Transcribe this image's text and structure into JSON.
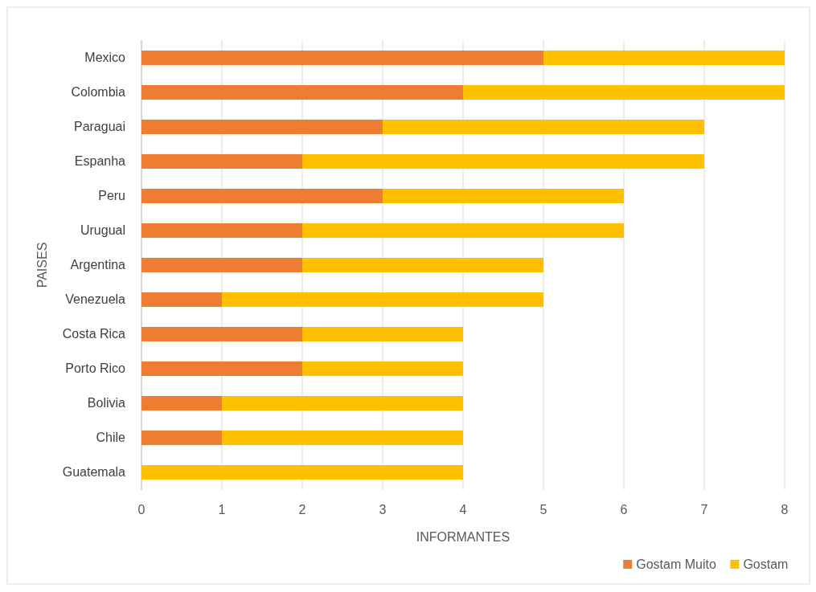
{
  "chart_data": {
    "type": "bar",
    "orientation": "horizontal",
    "stacked": true,
    "xlabel": "INFORMANTES",
    "ylabel": "PAISES",
    "categories": [
      "Mexico",
      "Colombia",
      "Paraguai",
      "Espanha",
      "Peru",
      "Urugual",
      "Argentina",
      "Venezuela",
      "Costa Rica",
      "Porto Rico",
      "Bolivia",
      "Chile",
      "Guatemala"
    ],
    "series": [
      {
        "name": "Gostam Muito",
        "color": "#ed7d31",
        "values": [
          5,
          4,
          3,
          2,
          3,
          2,
          2,
          1,
          2,
          2,
          1,
          1,
          0
        ]
      },
      {
        "name": "Gostam",
        "color": "#ffc000",
        "values": [
          3,
          4,
          4,
          5,
          3,
          4,
          3,
          4,
          2,
          2,
          3,
          3,
          4
        ]
      }
    ],
    "xlim": [
      0,
      8
    ],
    "xticks": [
      0,
      1,
      2,
      3,
      4,
      5,
      6,
      7,
      8
    ],
    "grid": "x",
    "legend": "bottom right"
  }
}
